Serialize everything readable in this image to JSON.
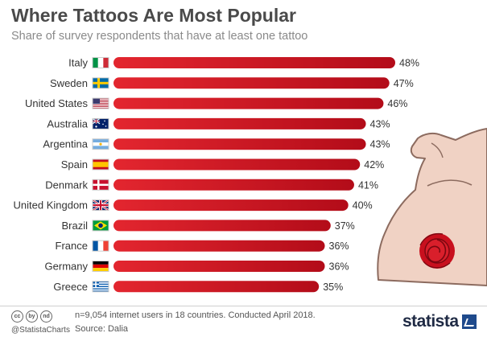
{
  "title": "Where Tattoos Are Most Popular",
  "subtitle": "Share of survey respondents that have at least one tattoo",
  "chart_data": {
    "type": "bar",
    "orientation": "horizontal",
    "title": "Where Tattoos Are Most Popular",
    "subtitle": "Share of survey respondents that have at least one tattoo",
    "categories": [
      "Italy",
      "Sweden",
      "United States",
      "Australia",
      "Argentina",
      "Spain",
      "Denmark",
      "United Kingdom",
      "Brazil",
      "France",
      "Germany",
      "Greece"
    ],
    "values": [
      48,
      47,
      46,
      43,
      43,
      42,
      41,
      40,
      37,
      36,
      36,
      35
    ],
    "value_labels": [
      "48%",
      "47%",
      "46%",
      "43%",
      "43%",
      "42%",
      "41%",
      "40%",
      "37%",
      "36%",
      "36%",
      "35%"
    ],
    "unit": "%",
    "xlim": [
      0,
      48
    ],
    "grid": false,
    "bar_color": "#c8101e"
  },
  "footer": {
    "cc_icons": [
      "cc",
      "by",
      "nd"
    ],
    "handle": "@StatistaCharts",
    "note": "n=9,054 internet users in 18 countries. Conducted April 2018.",
    "source": "Source: Dalia",
    "brand": "statista"
  },
  "colors": {
    "bar_dark": "#b30c19",
    "bar_light": "#e3262f",
    "text": "#333333",
    "skin": "#f0d2c4",
    "rose": "#c8101e"
  }
}
